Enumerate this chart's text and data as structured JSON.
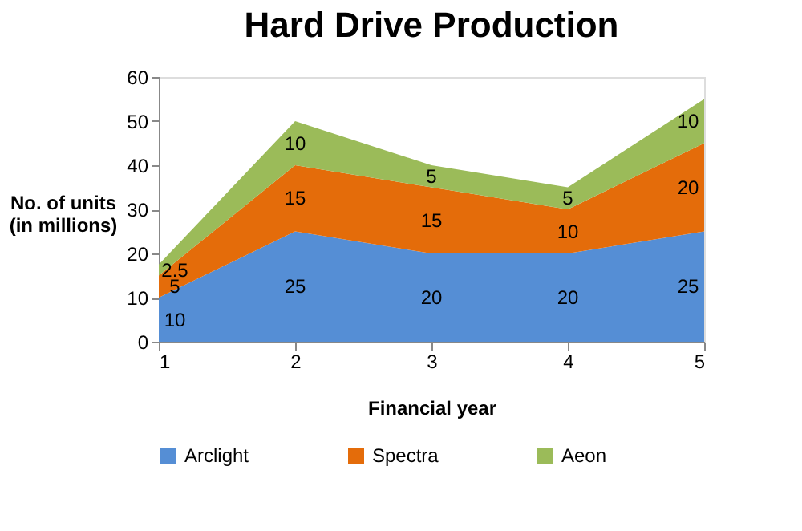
{
  "chart_data": {
    "type": "area",
    "title": "Hard Drive Production",
    "xlabel": "Financial year",
    "ylabel": "No. of units (in millions)",
    "categories": [
      "1",
      "2",
      "3",
      "4",
      "5"
    ],
    "stacked": true,
    "series": [
      {
        "name": "Arclight",
        "color": "#558ed5",
        "values": [
          10,
          25,
          20,
          20,
          25
        ]
      },
      {
        "name": "Spectra",
        "color": "#e46c0a",
        "values": [
          5,
          15,
          15,
          10,
          20
        ]
      },
      {
        "name": "Aeon",
        "color": "#9bbb59",
        "values": [
          2.5,
          10,
          5,
          5,
          10
        ]
      }
    ],
    "ylim": [
      0,
      60
    ],
    "yticks": [
      0,
      10,
      20,
      30,
      40,
      50,
      60
    ],
    "grid": false,
    "legend": "bottom",
    "data_labels": true
  }
}
